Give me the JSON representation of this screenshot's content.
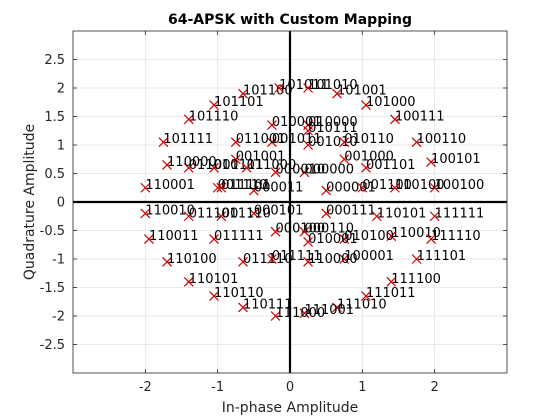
{
  "chart_data": {
    "type": "scatter",
    "title": "64-APSK with Custom Mapping",
    "xlabel": "In-phase Amplitude",
    "ylabel": "Quadrature Amplitude",
    "xlim": [
      -3,
      3
    ],
    "ylim": [
      -3,
      3
    ],
    "xticks": [
      -2,
      -1,
      0,
      1,
      2
    ],
    "yticks": [
      -2.5,
      -2,
      -1.5,
      -1,
      -0.5,
      0,
      0.5,
      1,
      1.5,
      2,
      2.5
    ],
    "xtick_labels": [
      "-2",
      "-1",
      "0",
      "1",
      "2"
    ],
    "ytick_labels": [
      "-2.5",
      "-2",
      "-1.5",
      "-1",
      "-0.5",
      "0",
      "0.5",
      "1",
      "1.5",
      "2",
      "2.5"
    ],
    "grid": true,
    "marker_color": "#cc0000",
    "points": [
      {
        "x": 0.2,
        "y": 0.52,
        "label": "000000"
      },
      {
        "x": 0.5,
        "y": 0.2,
        "label": "000001"
      },
      {
        "x": -0.5,
        "y": 0.2,
        "label": "000011"
      },
      {
        "x": -0.2,
        "y": 0.52,
        "label": "000010"
      },
      {
        "x": -0.2,
        "y": -0.52,
        "label": "000100"
      },
      {
        "x": -0.5,
        "y": -0.2,
        "label": "000101"
      },
      {
        "x": 0.5,
        "y": -0.2,
        "label": "000111"
      },
      {
        "x": 0.2,
        "y": -0.52,
        "label": "000110"
      },
      {
        "x": 0.75,
        "y": 0.75,
        "label": "001000"
      },
      {
        "x": 0.25,
        "y": 1.0,
        "label": "001010"
      },
      {
        "x": 1.0,
        "y": 0.25,
        "label": "001100"
      },
      {
        "x": 1.05,
        "y": 0.6,
        "label": "001101"
      },
      {
        "x": -0.25,
        "y": 1.05,
        "label": "001011"
      },
      {
        "x": -1.0,
        "y": 0.25,
        "label": "001110"
      },
      {
        "x": -1.05,
        "y": 0.6,
        "label": "001111"
      },
      {
        "x": -0.75,
        "y": 0.75,
        "label": "001001"
      },
      {
        "x": 0.25,
        "y": 1.35,
        "label": "010000"
      },
      {
        "x": 0.75,
        "y": 1.05,
        "label": "010110"
      },
      {
        "x": -0.25,
        "y": 1.35,
        "label": "010001"
      },
      {
        "x": -0.75,
        "y": 1.05,
        "label": "011001"
      },
      {
        "x": -0.6,
        "y": 0.6,
        "label": "011000"
      },
      {
        "x": -1.4,
        "y": 0.6,
        "label": "011010"
      },
      {
        "x": -0.95,
        "y": 0.25,
        "label": "011101"
      },
      {
        "x": -1.7,
        "y": 0.65,
        "label": "110000"
      },
      {
        "x": -2.0,
        "y": 0.25,
        "label": "110001"
      },
      {
        "x": -1.75,
        "y": 1.05,
        "label": "101111"
      },
      {
        "x": -1.4,
        "y": 1.45,
        "label": "101110"
      },
      {
        "x": -1.05,
        "y": 1.7,
        "label": "101101"
      },
      {
        "x": -0.65,
        "y": 1.9,
        "label": "101100"
      },
      {
        "x": -0.15,
        "y": 2.0,
        "label": "101011"
      },
      {
        "x": 0.25,
        "y": 2.0,
        "label": "101010"
      },
      {
        "x": 0.65,
        "y": 1.9,
        "label": "101001"
      },
      {
        "x": 1.05,
        "y": 1.7,
        "label": "101000"
      },
      {
        "x": 1.45,
        "y": 1.45,
        "label": "100111"
      },
      {
        "x": 1.75,
        "y": 1.05,
        "label": "100110"
      },
      {
        "x": 1.95,
        "y": 0.7,
        "label": "100101"
      },
      {
        "x": 2.0,
        "y": 0.25,
        "label": "100100"
      },
      {
        "x": 0.25,
        "y": 1.25,
        "label": "010111"
      },
      {
        "x": 1.45,
        "y": 0.25,
        "label": "110100"
      },
      {
        "x": 1.2,
        "y": -0.25,
        "label": "110101"
      },
      {
        "x": 2.0,
        "y": -0.25,
        "label": "111111"
      },
      {
        "x": 1.4,
        "y": -0.6,
        "label": "110010"
      },
      {
        "x": 1.95,
        "y": -0.65,
        "label": "111110"
      },
      {
        "x": 0.75,
        "y": -0.65,
        "label": "010100"
      },
      {
        "x": 0.75,
        "y": -1.0,
        "label": "100001"
      },
      {
        "x": 0.25,
        "y": -1.05,
        "label": "110000"
      },
      {
        "x": 1.75,
        "y": -1.0,
        "label": "111101"
      },
      {
        "x": 1.4,
        "y": -1.4,
        "label": "111100"
      },
      {
        "x": 1.05,
        "y": -1.65,
        "label": "111011"
      },
      {
        "x": 0.65,
        "y": -1.85,
        "label": "111010"
      },
      {
        "x": 0.2,
        "y": -1.95,
        "label": "111001"
      },
      {
        "x": -0.2,
        "y": -2.0,
        "label": "111000"
      },
      {
        "x": -0.65,
        "y": -1.85,
        "label": "110111"
      },
      {
        "x": -1.05,
        "y": -1.65,
        "label": "110110"
      },
      {
        "x": -1.4,
        "y": -1.4,
        "label": "110101"
      },
      {
        "x": -1.7,
        "y": -1.05,
        "label": "110100"
      },
      {
        "x": -1.95,
        "y": -0.65,
        "label": "110011"
      },
      {
        "x": -2.0,
        "y": -0.2,
        "label": "110010"
      },
      {
        "x": -0.95,
        "y": -0.25,
        "label": "011110"
      },
      {
        "x": -1.4,
        "y": -0.25,
        "label": "011100"
      },
      {
        "x": -1.05,
        "y": -0.65,
        "label": "011111"
      },
      {
        "x": -0.65,
        "y": -1.05,
        "label": "011110"
      },
      {
        "x": -0.25,
        "y": -1.0,
        "label": "011111"
      },
      {
        "x": 0.25,
        "y": -0.7,
        "label": "010001"
      }
    ]
  }
}
